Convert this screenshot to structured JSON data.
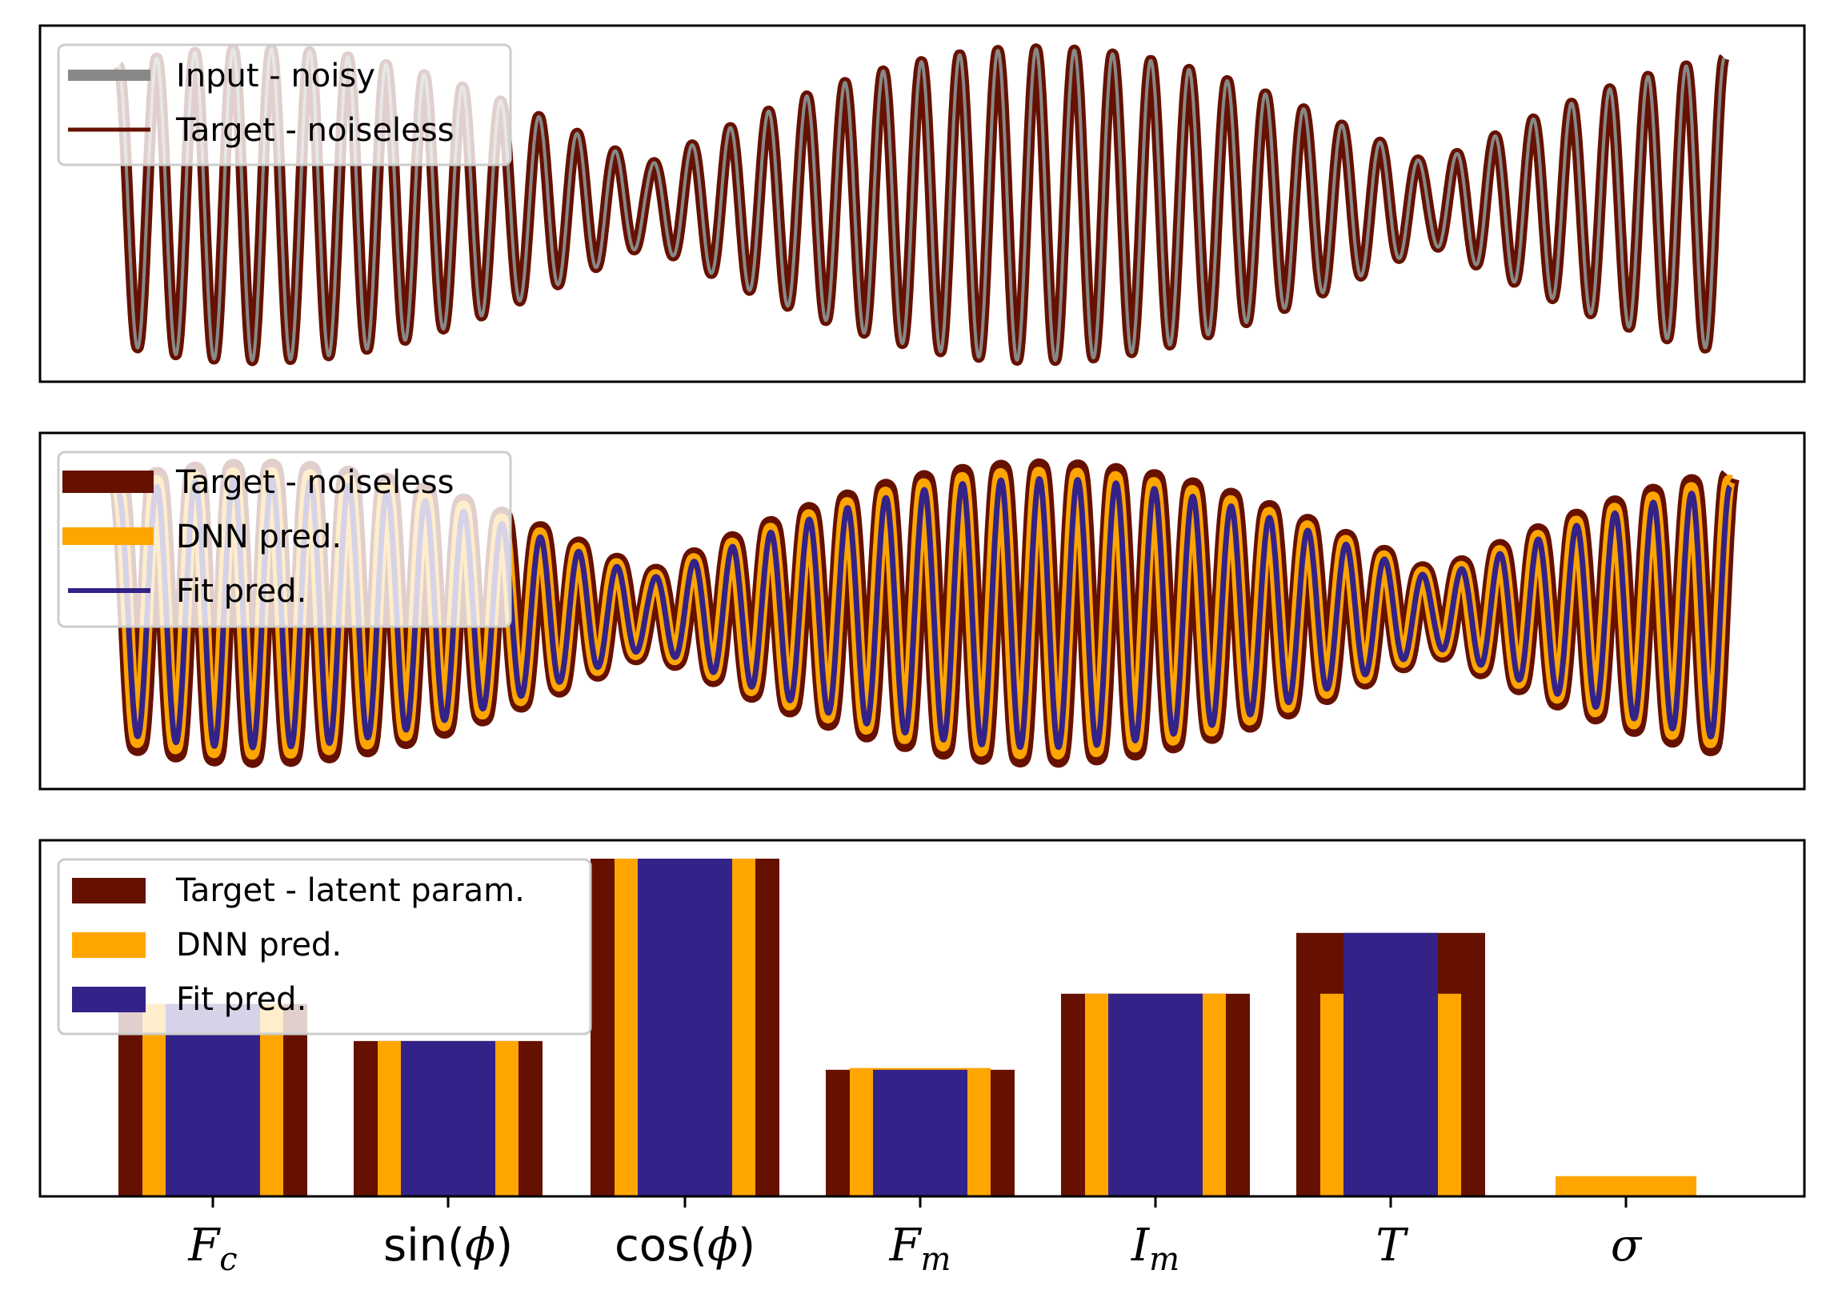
{
  "chart_data": [
    {
      "type": "line",
      "title": "",
      "grid": false,
      "legend_placement": "top-left",
      "x_ticks_visible": false,
      "y_ticks_visible": false,
      "signal_model": {
        "description": "amplitude-modulated oscillation",
        "carrier_cycles": 42,
        "modulation_cycles": 2.05,
        "mod_phase": -0.55,
        "mod_depth": 0.95,
        "offset": 0.02
      },
      "series": [
        {
          "name": "Input - noisy",
          "color": "#888888",
          "role": "input"
        },
        {
          "name": "Target - noiseless",
          "color": "#661100",
          "role": "target"
        }
      ]
    },
    {
      "type": "line",
      "title": "",
      "grid": false,
      "legend_placement": "top-left",
      "x_ticks_visible": false,
      "y_ticks_visible": false,
      "series": [
        {
          "name": "Target - noiseless",
          "color": "#661100",
          "role": "target"
        },
        {
          "name": "DNN pred.",
          "color": "#FFA500",
          "role": "dnn"
        },
        {
          "name": "Fit pred.",
          "color": "#332288",
          "role": "fit"
        }
      ]
    },
    {
      "type": "bar",
      "title": "",
      "grid": false,
      "legend_placement": "top-left",
      "categories": [
        "F_c",
        "sin(φ)",
        "cos(φ)",
        "F_m",
        "I_m",
        "T",
        "σ"
      ],
      "ylim": [
        0,
        1.0
      ],
      "series": [
        {
          "name": "Target - latent param.",
          "color": "#661100",
          "values": [
            0.57,
            0.46,
            1.0,
            0.375,
            0.6,
            0.78,
            0.0
          ]
        },
        {
          "name": "DNN pred.",
          "color": "#FFA500",
          "values": [
            0.57,
            0.46,
            1.0,
            0.38,
            0.6,
            0.6,
            0.06
          ]
        },
        {
          "name": "Fit pred.",
          "color": "#332288",
          "values": [
            0.57,
            0.46,
            1.0,
            0.375,
            0.6,
            0.78,
            0.0
          ]
        }
      ]
    }
  ],
  "tick_labels": {
    "F_c": {
      "base": "F",
      "sub": "c"
    },
    "sin_phi": {
      "pre": "sin(",
      "sym": "ϕ",
      "post": ")"
    },
    "cos_phi": {
      "pre": "cos(",
      "sym": "ϕ",
      "post": ")"
    },
    "F_m": {
      "base": "F",
      "sub": "m"
    },
    "I_m": {
      "base": "I",
      "sub": "m"
    },
    "T": {
      "base": "T"
    },
    "sigma": {
      "base": "σ"
    }
  }
}
